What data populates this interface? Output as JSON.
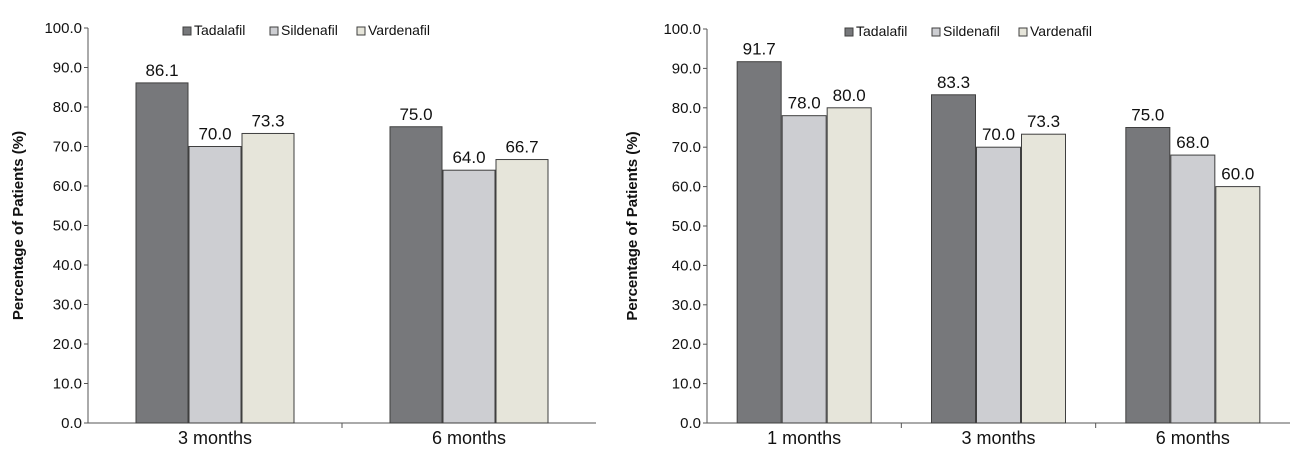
{
  "chart_data": [
    {
      "type": "bar",
      "title": "",
      "xlabel": "",
      "ylabel": "Percentage of Patients (%)",
      "ylim": [
        0,
        100
      ],
      "yticks": [
        "0.0",
        "10.0",
        "20.0",
        "30.0",
        "40.0",
        "50.0",
        "60.0",
        "70.0",
        "80.0",
        "90.0",
        "100.0"
      ],
      "grid": false,
      "legend": "top-center",
      "categories": [
        "3 months",
        "6 months"
      ],
      "series": [
        {
          "name": "Tadalafil",
          "color": "#77787b",
          "values": [
            86.1,
            75.0
          ],
          "labels": [
            "86.1",
            "75.0"
          ]
        },
        {
          "name": "Sildenafil",
          "color": "#cdced2",
          "values": [
            70.0,
            64.0
          ],
          "labels": [
            "70.0",
            "64.0"
          ]
        },
        {
          "name": "Vardenafil",
          "color": "#e6e5da",
          "values": [
            73.3,
            66.7
          ],
          "labels": [
            "73.3",
            "66.7"
          ]
        }
      ]
    },
    {
      "type": "bar",
      "title": "",
      "xlabel": "",
      "ylabel": "Percentage of Patients (%)",
      "ylim": [
        0,
        100
      ],
      "yticks": [
        "0.0",
        "10.0",
        "20.0",
        "30.0",
        "40.0",
        "50.0",
        "60.0",
        "70.0",
        "80.0",
        "90.0",
        "100.0"
      ],
      "grid": false,
      "legend": "top-center",
      "categories": [
        "1 months",
        "3 months",
        "6 months"
      ],
      "series": [
        {
          "name": "Tadalafil",
          "color": "#77787b",
          "values": [
            91.7,
            83.3,
            75.0
          ],
          "labels": [
            "91.7",
            "83.3",
            "75.0"
          ]
        },
        {
          "name": "Sildenafil",
          "color": "#cdced2",
          "values": [
            78.0,
            70.0,
            68.0
          ],
          "labels": [
            "78.0",
            "70.0",
            "68.0"
          ]
        },
        {
          "name": "Vardenafil",
          "color": "#e6e5da",
          "values": [
            80.0,
            73.3,
            60.0
          ],
          "labels": [
            "80.0",
            "73.3",
            "60.0"
          ]
        }
      ]
    }
  ]
}
